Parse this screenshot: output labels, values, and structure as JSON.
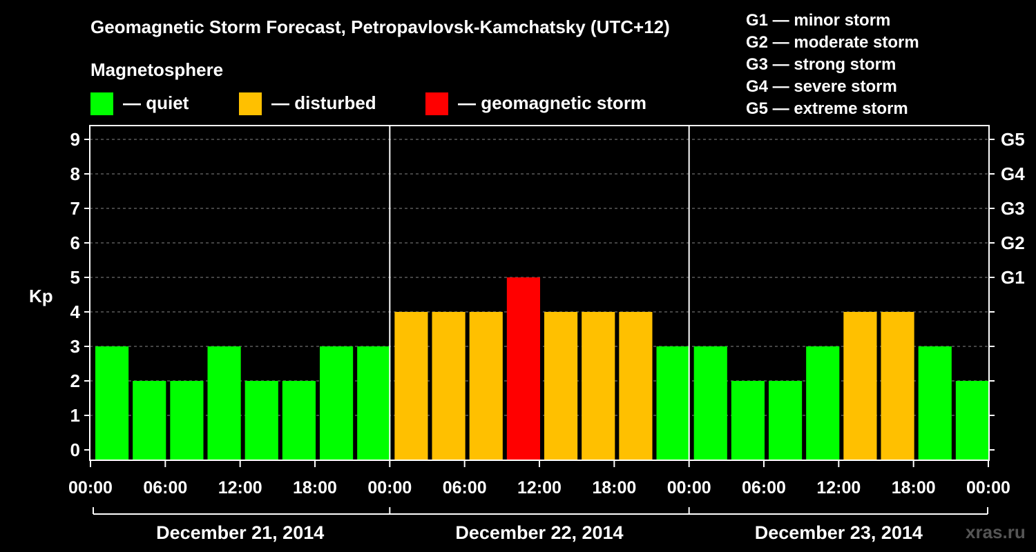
{
  "colors": {
    "quiet": "#00ff00",
    "disturbed": "#ffc000",
    "storm": "#ff0000",
    "axis": "#ffffff",
    "grid": "#888888",
    "watermark": "#555555"
  },
  "legend": {
    "heading": "Magnetosphere",
    "items": [
      {
        "key": "quiet",
        "label": "— quiet"
      },
      {
        "key": "disturbed",
        "label": "— disturbed"
      },
      {
        "key": "storm",
        "label": "— geomagnetic storm"
      }
    ]
  },
  "storm_scale": [
    "G1 — minor storm",
    "G2 — moderate storm",
    "G3 — strong storm",
    "G4 — severe storm",
    "G5 — extreme storm"
  ],
  "watermark": "xras.ru",
  "chart_data": {
    "type": "bar",
    "title": "Geomagnetic Storm Forecast, Petropavlovsk-Kamchatsky (UTC+12)",
    "ylabel": "Kp",
    "ylim": [
      0,
      9
    ],
    "yticks": [
      0,
      1,
      2,
      3,
      4,
      5,
      6,
      7,
      8,
      9
    ],
    "right_axis_labels": [
      {
        "kp": 5,
        "label": "G1"
      },
      {
        "kp": 6,
        "label": "G2"
      },
      {
        "kp": 7,
        "label": "G3"
      },
      {
        "kp": 8,
        "label": "G4"
      },
      {
        "kp": 9,
        "label": "G5"
      }
    ],
    "xtick_labels": [
      "00:00",
      "06:00",
      "12:00",
      "18:00",
      "00:00",
      "06:00",
      "12:00",
      "18:00",
      "00:00",
      "06:00",
      "12:00",
      "18:00",
      "00:00"
    ],
    "days": [
      "December 21, 2014",
      "December 22, 2014",
      "December 23, 2014"
    ],
    "bars_per_day": 8,
    "values": [
      3,
      2,
      2,
      3,
      2,
      2,
      3,
      3,
      4,
      4,
      4,
      5,
      4,
      4,
      4,
      3,
      3,
      2,
      2,
      3,
      4,
      4,
      3,
      2
    ],
    "status": [
      "quiet",
      "quiet",
      "quiet",
      "quiet",
      "quiet",
      "quiet",
      "quiet",
      "quiet",
      "disturbed",
      "disturbed",
      "disturbed",
      "storm",
      "disturbed",
      "disturbed",
      "disturbed",
      "quiet",
      "quiet",
      "quiet",
      "quiet",
      "quiet",
      "disturbed",
      "disturbed",
      "quiet",
      "quiet"
    ]
  }
}
